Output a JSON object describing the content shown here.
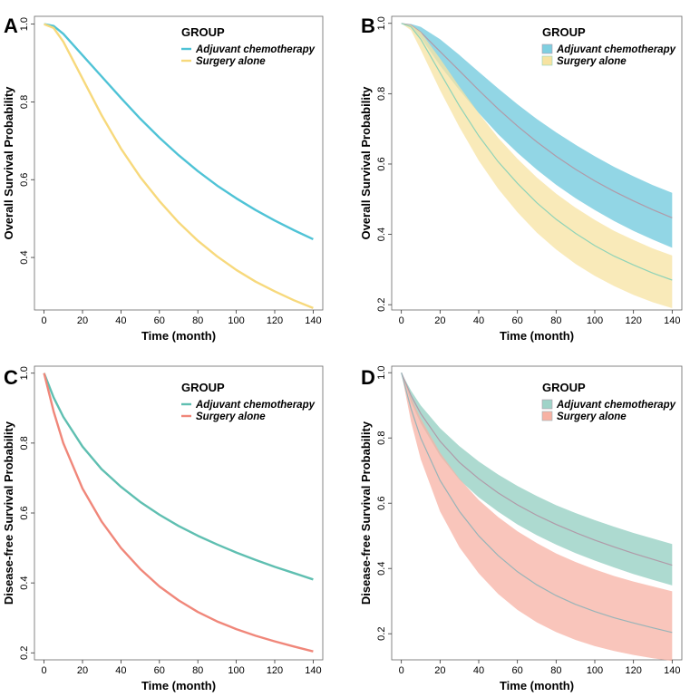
{
  "chart_data": [
    {
      "panel": "A",
      "type": "line",
      "xlabel": "Time (month)",
      "ylabel": "Overall Survival Probability",
      "xlim": [
        -5,
        145
      ],
      "ylim": [
        0.265,
        1.02
      ],
      "xticks": [
        0,
        20,
        40,
        60,
        80,
        100,
        120,
        140
      ],
      "xtick_labels": [
        "0",
        "20",
        "40",
        "60",
        "80",
        "100",
        "120",
        "140"
      ],
      "yticks": [
        0.4,
        0.6,
        0.8,
        1.0
      ],
      "ytick_labels": [
        "0.4",
        "0.6",
        "0.8",
        "1.0"
      ],
      "legend_title": "GROUP",
      "series": [
        {
          "name": "Adjuvant chemotherapy",
          "color": "#4fc3d6",
          "x": [
            0,
            5,
            10,
            20,
            30,
            40,
            50,
            60,
            70,
            80,
            90,
            100,
            110,
            120,
            130,
            140
          ],
          "y": [
            1.0,
            0.995,
            0.975,
            0.92,
            0.865,
            0.81,
            0.757,
            0.708,
            0.663,
            0.622,
            0.585,
            0.552,
            0.522,
            0.495,
            0.47,
            0.447
          ]
        },
        {
          "name": "Surgery alone",
          "color": "#f7d97c",
          "x": [
            0,
            5,
            10,
            20,
            30,
            40,
            50,
            60,
            70,
            80,
            90,
            100,
            110,
            120,
            130,
            140
          ],
          "y": [
            1.0,
            0.99,
            0.955,
            0.86,
            0.765,
            0.68,
            0.607,
            0.545,
            0.49,
            0.443,
            0.403,
            0.368,
            0.338,
            0.313,
            0.29,
            0.27
          ]
        }
      ]
    },
    {
      "panel": "B",
      "type": "area",
      "xlabel": "Time (month)",
      "ylabel": "Overall Survival Probability",
      "xlim": [
        -5,
        145
      ],
      "ylim": [
        0.185,
        1.02
      ],
      "xticks": [
        0,
        20,
        40,
        60,
        80,
        100,
        120,
        140
      ],
      "xtick_labels": [
        "0",
        "20",
        "40",
        "60",
        "80",
        "100",
        "120",
        "140"
      ],
      "yticks": [
        0.2,
        0.4,
        0.6,
        0.8,
        1.0
      ],
      "ytick_labels": [
        "0.2",
        "0.4",
        "0.6",
        "0.8",
        "1.0"
      ],
      "legend_title": "GROUP",
      "series": [
        {
          "name": "Adjuvant chemotherapy",
          "color": "#7fcfe0",
          "line_color": "#b09aa8",
          "x": [
            0,
            5,
            10,
            20,
            30,
            40,
            50,
            60,
            70,
            80,
            90,
            100,
            110,
            120,
            130,
            140
          ],
          "y": [
            1.0,
            0.995,
            0.975,
            0.92,
            0.865,
            0.81,
            0.757,
            0.708,
            0.663,
            0.622,
            0.585,
            0.552,
            0.522,
            0.495,
            0.47,
            0.447
          ],
          "upper": [
            1.0,
            0.998,
            0.99,
            0.955,
            0.91,
            0.862,
            0.815,
            0.77,
            0.728,
            0.69,
            0.655,
            0.622,
            0.592,
            0.565,
            0.54,
            0.518
          ],
          "lower": [
            1.0,
            0.99,
            0.96,
            0.88,
            0.81,
            0.745,
            0.685,
            0.632,
            0.584,
            0.541,
            0.503,
            0.469,
            0.438,
            0.41,
            0.385,
            0.362
          ]
        },
        {
          "name": "Surgery alone",
          "color": "#f7e3a1",
          "line_color": "#8fd3b8",
          "x": [
            0,
            5,
            10,
            20,
            30,
            40,
            50,
            60,
            70,
            80,
            90,
            100,
            110,
            120,
            130,
            140
          ],
          "y": [
            1.0,
            0.99,
            0.955,
            0.86,
            0.765,
            0.68,
            0.607,
            0.545,
            0.49,
            0.443,
            0.403,
            0.368,
            0.338,
            0.313,
            0.29,
            0.27
          ],
          "upper": [
            1.0,
            0.995,
            0.975,
            0.9,
            0.82,
            0.745,
            0.675,
            0.615,
            0.562,
            0.516,
            0.476,
            0.441,
            0.41,
            0.384,
            0.36,
            0.34
          ],
          "lower": [
            1.0,
            0.98,
            0.925,
            0.81,
            0.705,
            0.61,
            0.53,
            0.463,
            0.405,
            0.357,
            0.316,
            0.282,
            0.253,
            0.228,
            0.207,
            0.19
          ]
        }
      ]
    },
    {
      "panel": "C",
      "type": "line",
      "xlabel": "Time (month)",
      "ylabel": "Disease-free Survival Probability",
      "xlim": [
        -5,
        145
      ],
      "ylim": [
        0.18,
        1.02
      ],
      "xticks": [
        0,
        20,
        40,
        60,
        80,
        100,
        120,
        140
      ],
      "xtick_labels": [
        "0",
        "20",
        "40",
        "60",
        "80",
        "100",
        "120",
        "140"
      ],
      "yticks": [
        0.2,
        0.4,
        0.6,
        0.8,
        1.0
      ],
      "ytick_labels": [
        "0.2",
        "0.4",
        "0.6",
        "0.8",
        "1.0"
      ],
      "legend_title": "GROUP",
      "series": [
        {
          "name": "Adjuvant chemotherapy",
          "color": "#5fbfb1",
          "x": [
            0,
            5,
            10,
            20,
            30,
            40,
            50,
            60,
            70,
            80,
            90,
            100,
            110,
            120,
            130,
            140
          ],
          "y": [
            1.0,
            0.93,
            0.875,
            0.79,
            0.725,
            0.675,
            0.632,
            0.595,
            0.563,
            0.535,
            0.51,
            0.487,
            0.466,
            0.446,
            0.428,
            0.41
          ]
        },
        {
          "name": "Surgery alone",
          "color": "#f0877a",
          "x": [
            0,
            5,
            10,
            20,
            30,
            40,
            50,
            60,
            70,
            80,
            90,
            100,
            110,
            120,
            130,
            140
          ],
          "y": [
            1.0,
            0.89,
            0.8,
            0.67,
            0.575,
            0.5,
            0.44,
            0.39,
            0.35,
            0.317,
            0.29,
            0.268,
            0.249,
            0.233,
            0.218,
            0.204
          ]
        }
      ]
    },
    {
      "panel": "D",
      "type": "area",
      "xlabel": "Time (month)",
      "ylabel": "Disease-free Survival Probability",
      "xlim": [
        -5,
        145
      ],
      "ylim": [
        0.12,
        1.02
      ],
      "xticks": [
        0,
        20,
        40,
        60,
        80,
        100,
        120,
        140
      ],
      "xtick_labels": [
        "0",
        "20",
        "40",
        "60",
        "80",
        "100",
        "120",
        "140"
      ],
      "yticks": [
        0.2,
        0.4,
        0.6,
        0.8,
        1.0
      ],
      "ytick_labels": [
        "0.2",
        "0.4",
        "0.6",
        "0.8",
        "1.0"
      ],
      "legend_title": "GROUP",
      "series": [
        {
          "name": "Adjuvant chemotherapy",
          "color": "#9fd3c8",
          "line_color": "#b09aa8",
          "x": [
            0,
            5,
            10,
            20,
            30,
            40,
            50,
            60,
            70,
            80,
            90,
            100,
            110,
            120,
            130,
            140
          ],
          "y": [
            1.0,
            0.93,
            0.875,
            0.79,
            0.725,
            0.675,
            0.632,
            0.595,
            0.563,
            0.535,
            0.51,
            0.487,
            0.466,
            0.446,
            0.428,
            0.41
          ],
          "upper": [
            1.0,
            0.945,
            0.9,
            0.83,
            0.775,
            0.728,
            0.688,
            0.653,
            0.622,
            0.594,
            0.57,
            0.548,
            0.528,
            0.509,
            0.492,
            0.475
          ],
          "lower": [
            1.0,
            0.91,
            0.845,
            0.745,
            0.672,
            0.618,
            0.574,
            0.535,
            0.502,
            0.473,
            0.447,
            0.424,
            0.403,
            0.383,
            0.365,
            0.348
          ]
        },
        {
          "name": "Surgery alone",
          "color": "#f7b2a4",
          "line_color": "#98b4b8",
          "x": [
            0,
            5,
            10,
            20,
            30,
            40,
            50,
            60,
            70,
            80,
            90,
            100,
            110,
            120,
            130,
            140
          ],
          "y": [
            1.0,
            0.89,
            0.8,
            0.67,
            0.575,
            0.5,
            0.44,
            0.39,
            0.35,
            0.317,
            0.29,
            0.268,
            0.249,
            0.233,
            0.218,
            0.204
          ],
          "upper": [
            1.0,
            0.925,
            0.86,
            0.755,
            0.675,
            0.61,
            0.558,
            0.514,
            0.478,
            0.446,
            0.42,
            0.397,
            0.377,
            0.36,
            0.345,
            0.33
          ],
          "lower": [
            1.0,
            0.85,
            0.735,
            0.575,
            0.465,
            0.385,
            0.322,
            0.273,
            0.235,
            0.205,
            0.181,
            0.162,
            0.147,
            0.135,
            0.125,
            0.117
          ]
        }
      ]
    }
  ]
}
